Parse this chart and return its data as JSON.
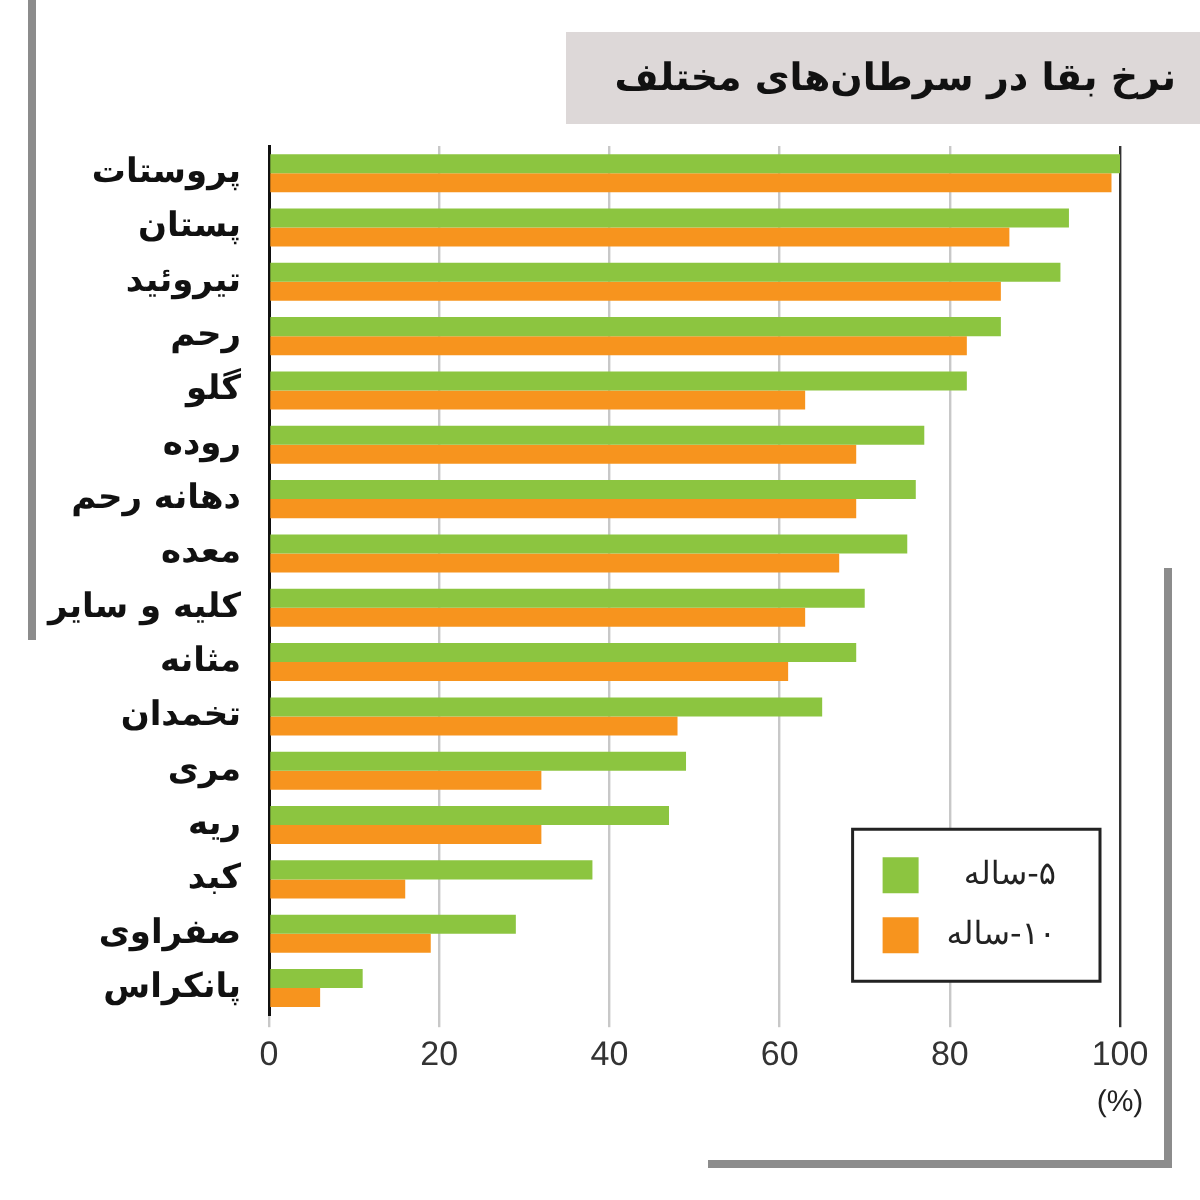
{
  "chart_data": {
    "type": "bar",
    "orientation": "horizontal",
    "title": "نرخ بقا در سرطان‌های مختلف",
    "xlabel": "(%)",
    "categories": [
      "پروستات",
      "پستان",
      "تیروئید",
      "رحم",
      "گلو",
      "روده",
      "دهانه رحم",
      "معده",
      "کلیه و سایر",
      "مثانه",
      "تخمدان",
      "مری",
      "ریه",
      "کبد",
      "صفراوی",
      "پانکراس"
    ],
    "series": [
      {
        "name": "۵-ساله",
        "color": "#8cc540",
        "values": [
          100,
          94,
          93,
          86,
          82,
          77,
          76,
          75,
          70,
          69,
          65,
          49,
          47,
          38,
          29,
          11
        ]
      },
      {
        "name": "۱۰-ساله",
        "color": "#f7941e",
        "values": [
          99,
          87,
          86,
          82,
          63,
          69,
          69,
          67,
          63,
          61,
          48,
          32,
          32,
          16,
          19,
          6
        ]
      }
    ],
    "xlim": [
      0,
      100
    ],
    "xticks": [
      0,
      20,
      40,
      60,
      80,
      100
    ],
    "grid": "x",
    "legend": "bottom right"
  }
}
